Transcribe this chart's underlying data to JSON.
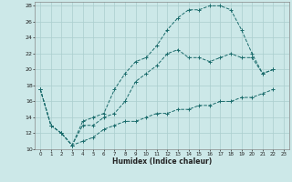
{
  "xlabel": "Humidex (Indice chaleur)",
  "ylabel": "",
  "bg_color": "#cce8e8",
  "grid_color": "#aacece",
  "line_color": "#1a6b6b",
  "xlim": [
    -0.5,
    23.5
  ],
  "ylim": [
    10,
    28.5
  ],
  "xticks": [
    0,
    1,
    2,
    3,
    4,
    5,
    6,
    7,
    8,
    9,
    10,
    11,
    12,
    13,
    14,
    15,
    16,
    17,
    18,
    19,
    20,
    21,
    22,
    23
  ],
  "yticks": [
    10,
    12,
    14,
    16,
    18,
    20,
    22,
    24,
    26,
    28
  ],
  "line1_x": [
    0,
    1,
    2,
    3,
    4,
    5,
    6,
    7,
    8,
    9,
    10,
    11,
    12,
    13,
    14,
    15,
    16,
    17,
    18,
    19,
    20,
    21,
    22
  ],
  "line1_y": [
    17.5,
    13.0,
    12.0,
    10.5,
    13.5,
    14.0,
    14.5,
    17.5,
    19.5,
    21.0,
    21.5,
    23.0,
    25.0,
    26.5,
    27.5,
    27.5,
    28.0,
    28.0,
    27.5,
    25.0,
    22.0,
    19.5,
    20.0
  ],
  "line2_x": [
    0,
    1,
    2,
    3,
    4,
    5,
    6,
    7,
    8,
    9,
    10,
    11,
    12,
    13,
    14,
    15,
    16,
    17,
    18,
    19,
    20,
    21,
    22
  ],
  "line2_y": [
    17.5,
    13.0,
    12.0,
    10.5,
    13.0,
    13.0,
    14.0,
    14.5,
    16.0,
    18.5,
    19.5,
    20.5,
    22.0,
    22.5,
    21.5,
    21.5,
    21.0,
    21.5,
    22.0,
    21.5,
    21.5,
    19.5,
    20.0
  ],
  "line3_x": [
    0,
    1,
    2,
    3,
    4,
    5,
    6,
    7,
    8,
    9,
    10,
    11,
    12,
    13,
    14,
    15,
    16,
    17,
    18,
    19,
    20,
    21,
    22
  ],
  "line3_y": [
    17.5,
    13.0,
    12.0,
    10.5,
    11.0,
    11.5,
    12.5,
    13.0,
    13.5,
    13.5,
    14.0,
    14.5,
    14.5,
    15.0,
    15.0,
    15.5,
    15.5,
    16.0,
    16.0,
    16.5,
    16.5,
    17.0,
    17.5
  ]
}
